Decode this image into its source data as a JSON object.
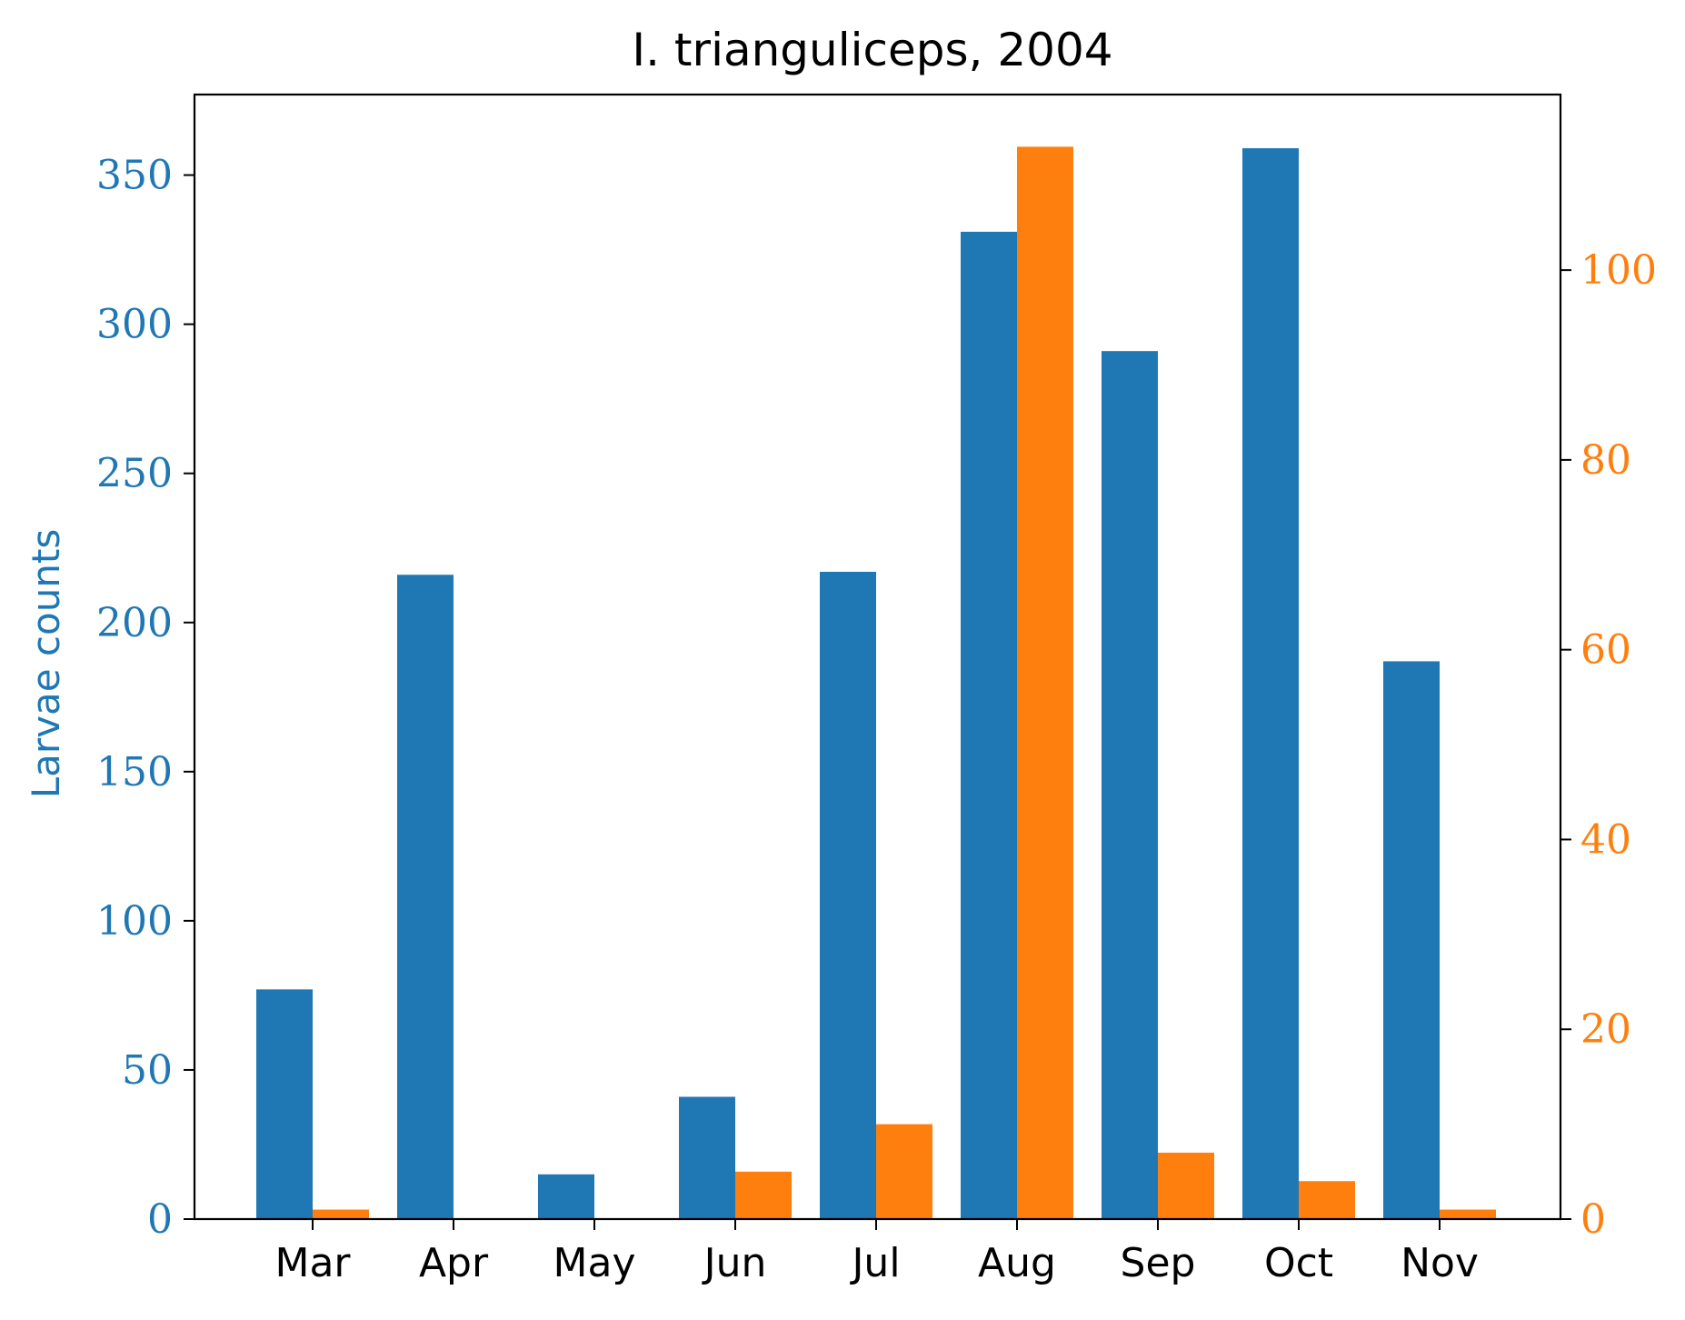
{
  "chart_data": {
    "type": "bar",
    "title": "I. trianguliceps, 2004",
    "xlabel": "",
    "ylabel": "Larvae counts",
    "ylabel_right": "",
    "categories": [
      "Mar",
      "Apr",
      "May",
      "Jun",
      "Jul",
      "Aug",
      "Sep",
      "Oct",
      "Nov"
    ],
    "series": [
      {
        "axis": "left",
        "color": "#1f77b4",
        "values": [
          77,
          216,
          15,
          41,
          217,
          331,
          291,
          359,
          187
        ]
      },
      {
        "axis": "right",
        "color": "#ff7f0e",
        "values": [
          1,
          0,
          0,
          5,
          10,
          113,
          7,
          4,
          1
        ]
      }
    ],
    "ylim": [
      0,
      377
    ],
    "ylim_right": [
      0,
      118.5
    ],
    "yticks": [
      "0",
      "50",
      "100",
      "150",
      "200",
      "250",
      "300",
      "350"
    ],
    "yticks_right": [
      "0",
      "20",
      "40",
      "60",
      "80",
      "100"
    ],
    "grid": false,
    "legend": "none"
  }
}
